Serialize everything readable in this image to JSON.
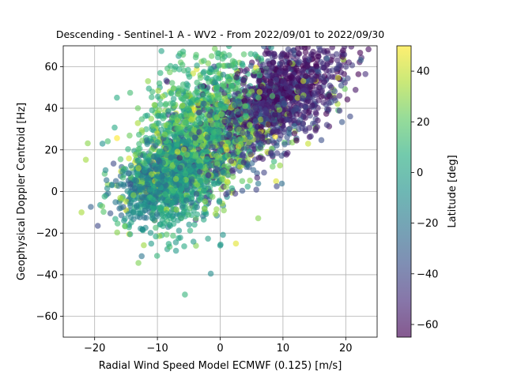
{
  "chart_data": {
    "type": "scatter",
    "title": "Descending - Sentinel-1 A - WV2 - From 2022/09/01 to 2022/09/30",
    "xlabel": "Radial Wind Speed Model ECMWF (0.125) [m/s]",
    "ylabel": "Geophysical Doppler Centroid [Hz]",
    "xlim": [
      -25,
      25
    ],
    "ylim": [
      -70,
      70
    ],
    "xticks": [
      -20,
      -10,
      0,
      10,
      20
    ],
    "yticks": [
      -60,
      -40,
      -20,
      0,
      20,
      40,
      60
    ],
    "grid": true,
    "point_alpha": 0.6,
    "colorbar": {
      "label": "Latitude [deg]",
      "colormap": "viridis",
      "range": [
        -65,
        50
      ],
      "ticks": [
        -60,
        -40,
        -20,
        0,
        20,
        40
      ]
    },
    "clusters": [
      {
        "x_center": 10,
        "y_center": 48,
        "x_spread": 5,
        "y_spread": 11,
        "latitude": -55,
        "count": 900
      },
      {
        "x_center": 3,
        "y_center": 30,
        "x_spread": 6,
        "y_spread": 13,
        "latitude": -40,
        "count": 500
      },
      {
        "x_center": -10,
        "y_center": 5,
        "x_spread": 3,
        "y_spread": 8,
        "latitude": -15,
        "count": 500
      },
      {
        "x_center": -6,
        "y_center": 8,
        "x_spread": 3.5,
        "y_spread": 14,
        "latitude": 0,
        "count": 700
      },
      {
        "x_center": -3,
        "y_center": 35,
        "x_spread": 5,
        "y_spread": 16,
        "latitude": 12,
        "count": 700
      },
      {
        "x_center": -2,
        "y_center": 22,
        "x_spread": 7,
        "y_spread": 14,
        "latitude": 30,
        "count": 500
      }
    ],
    "outliers": [
      {
        "x": -19.5,
        "y": -16.5,
        "latitude": -40
      },
      {
        "x": -14.5,
        "y": -20.5,
        "latitude": 42
      },
      {
        "x": -1.5,
        "y": -39.5,
        "latitude": -10
      },
      {
        "x": 2.5,
        "y": -25,
        "latitude": 45
      },
      {
        "x": 0,
        "y": -26,
        "latitude": -5
      },
      {
        "x": -11.5,
        "y": 53,
        "latitude": 30
      },
      {
        "x": 17,
        "y": 32,
        "latitude": -45
      },
      {
        "x": 20.5,
        "y": 62,
        "latitude": -55
      },
      {
        "x": 19,
        "y": 46,
        "latitude": -55
      },
      {
        "x": 9,
        "y": 2.5,
        "latitude": -40
      },
      {
        "x": 14,
        "y": 23,
        "latitude": 40
      },
      {
        "x": -17.5,
        "y": -10.5,
        "latitude": -35
      },
      {
        "x": -18,
        "y": 1.5,
        "latitude": -10
      },
      {
        "x": -15,
        "y": -9,
        "latitude": 45
      }
    ]
  }
}
